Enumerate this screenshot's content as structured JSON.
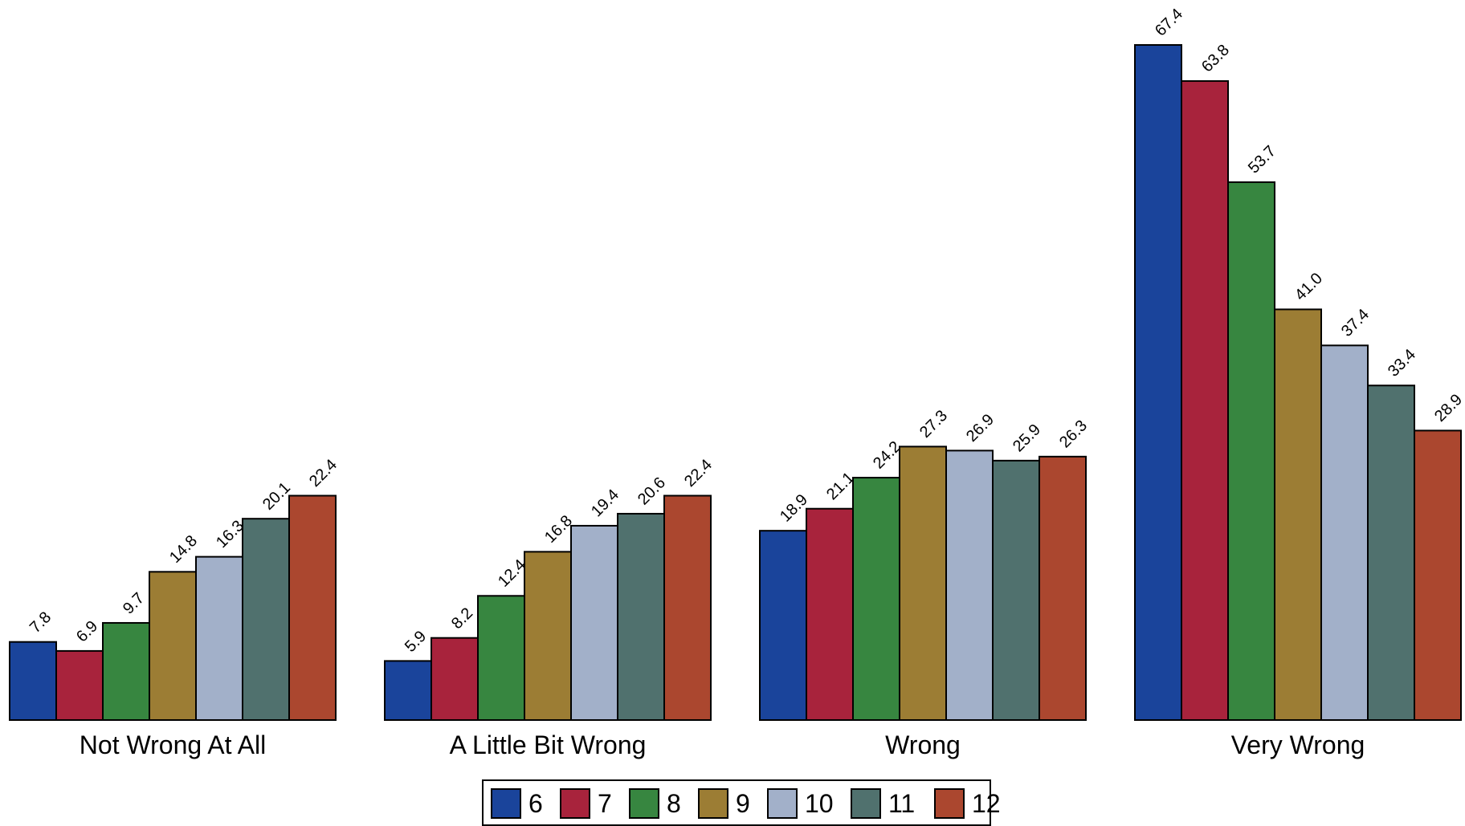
{
  "chart_data": {
    "type": "bar",
    "categories": [
      "Not Wrong At All",
      "A Little Bit Wrong",
      "Wrong",
      "Very Wrong"
    ],
    "series": [
      {
        "name": "6",
        "color": "#1a449b",
        "values": [
          7.8,
          5.9,
          18.9,
          67.4
        ]
      },
      {
        "name": "7",
        "color": "#a8233c",
        "values": [
          6.9,
          8.2,
          21.1,
          63.8
        ]
      },
      {
        "name": "8",
        "color": "#378640",
        "values": [
          9.7,
          12.4,
          24.2,
          53.7
        ]
      },
      {
        "name": "9",
        "color": "#9c7d34",
        "values": [
          14.8,
          16.8,
          27.3,
          41.0
        ]
      },
      {
        "name": "10",
        "color": "#a2b0c9",
        "values": [
          16.3,
          19.4,
          26.9,
          37.4
        ]
      },
      {
        "name": "11",
        "color": "#50716e",
        "values": [
          20.1,
          20.6,
          25.9,
          33.4
        ]
      },
      {
        "name": "12",
        "color": "#ab472f",
        "values": [
          22.4,
          22.4,
          26.3,
          28.9
        ]
      }
    ],
    "value_label_format": "one-decimal",
    "ylim": [
      0,
      67.4
    ],
    "grid": false,
    "legend_position": "bottom-center"
  }
}
